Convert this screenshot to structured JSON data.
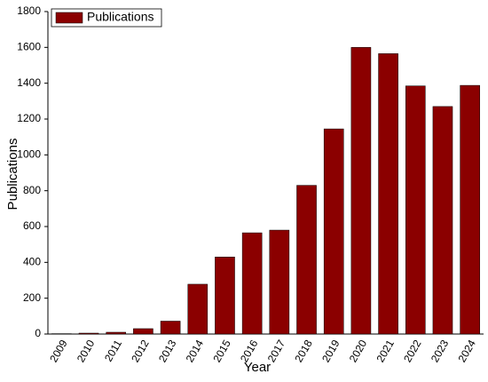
{
  "chart_data": {
    "type": "bar",
    "xlabel": "Year",
    "ylabel": "Publications",
    "categories": [
      "2009",
      "2010",
      "2011",
      "2012",
      "2013",
      "2014",
      "2015",
      "2016",
      "2017",
      "2018",
      "2019",
      "2020",
      "2021",
      "2022",
      "2023",
      "2024"
    ],
    "series": [
      {
        "name": "Publications",
        "color": "#8b0000",
        "values": [
          2,
          5,
          10,
          30,
          72,
          278,
          430,
          565,
          580,
          830,
          1145,
          1600,
          1565,
          1385,
          1270,
          1388
        ]
      }
    ],
    "ylim": [
      0,
      1800
    ],
    "yticks": [
      0,
      200,
      400,
      600,
      800,
      1000,
      1200,
      1400,
      1600,
      1800
    ],
    "grid": false,
    "legend": "top-left"
  }
}
